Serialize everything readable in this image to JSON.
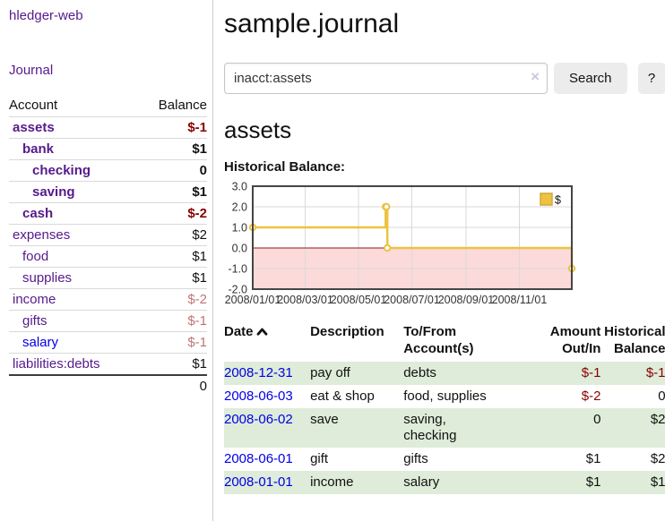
{
  "app": {
    "brand": "hledger-web",
    "nav_journal": "Journal"
  },
  "sidebar": {
    "account_header": "Account",
    "balance_header": "Balance",
    "accounts": [
      {
        "name": "assets",
        "balance": "$-1"
      },
      {
        "name": "bank",
        "balance": "$1"
      },
      {
        "name": "checking",
        "balance": "0"
      },
      {
        "name": "saving",
        "balance": "$1"
      },
      {
        "name": "cash",
        "balance": "$-2"
      },
      {
        "name": "expenses",
        "balance": "$2"
      },
      {
        "name": "food",
        "balance": "$1"
      },
      {
        "name": "supplies",
        "balance": "$1"
      },
      {
        "name": "income",
        "balance": "$-2"
      },
      {
        "name": "gifts",
        "balance": "$-1"
      },
      {
        "name": "salary",
        "balance": "$-1"
      },
      {
        "name": "liabilities:debts",
        "balance": "$1"
      }
    ],
    "total": "0"
  },
  "header": {
    "title": "sample.journal"
  },
  "search": {
    "value": "inacct:assets",
    "clear_icon": "×",
    "button_label": "Search",
    "help_label": "?"
  },
  "account_page": {
    "title": "assets",
    "chart_label": "Historical Balance:"
  },
  "chart_data": {
    "type": "line",
    "step": true,
    "title": "Historical Balance",
    "series": [
      {
        "name": "$",
        "color": "#edc240",
        "points": [
          [
            "2008-01-01",
            1
          ],
          [
            "2008-06-01",
            2
          ],
          [
            "2008-06-02",
            2
          ],
          [
            "2008-06-03",
            0
          ],
          [
            "2008-12-31",
            -1
          ]
        ]
      }
    ],
    "x_range": [
      "2008-01-01",
      "2008-12-31"
    ],
    "ylim": [
      -2,
      3
    ],
    "x_tick_labels": [
      "2008/01/01",
      "2008/03/01",
      "2008/05/01",
      "2008/07/01",
      "2008/09/01",
      "2008/11/01"
    ],
    "y_ticks": [
      3,
      2,
      1,
      0,
      -1,
      -2
    ],
    "grid": true,
    "legend": "$",
    "legend_position": "top-right",
    "negative_region_color": "#fcdada",
    "zero_line_color": "#8b1a1a"
  },
  "register": {
    "columns": [
      "Date",
      "Description",
      "To/From\nAccount(s)",
      "Amount\nOut/In",
      "Historical\nBalance"
    ],
    "rows": [
      {
        "date": "2008-12-31",
        "description": "pay off",
        "accounts": "debts",
        "amount": "$-1",
        "balance": "$-1"
      },
      {
        "date": "2008-06-03",
        "description": "eat & shop",
        "accounts": "food, supplies",
        "amount": "$-2",
        "balance": "0"
      },
      {
        "date": "2008-06-02",
        "description": "save",
        "accounts": "saving,\nchecking",
        "amount": "0",
        "balance": "$2"
      },
      {
        "date": "2008-06-01",
        "description": "gift",
        "accounts": "gifts",
        "amount": "$1",
        "balance": "$2"
      },
      {
        "date": "2008-01-01",
        "description": "income",
        "accounts": "salary",
        "amount": "$1",
        "balance": "$1"
      }
    ]
  }
}
